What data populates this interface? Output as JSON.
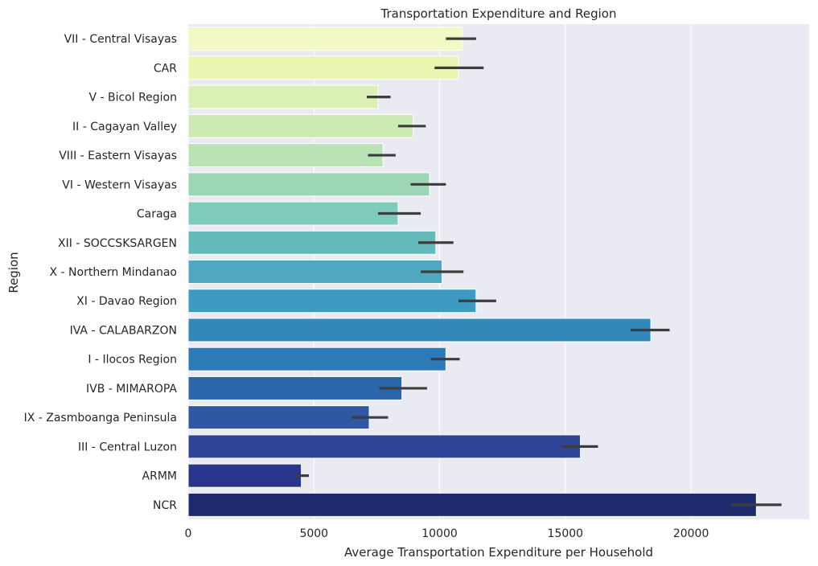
{
  "chart_data": {
    "type": "bar",
    "orientation": "horizontal",
    "title": "Transportation Expenditure and Region",
    "xlabel": "Average Transportation Expenditure per Household",
    "ylabel": "Region",
    "xlim": [
      0,
      24700
    ],
    "xticks": [
      0,
      5000,
      10000,
      15000,
      20000
    ],
    "grid": true,
    "palette": "YlGnBu",
    "categories": [
      "VII - Central Visayas",
      "CAR",
      "V - Bicol Region",
      "II - Cagayan Valley",
      "VIII - Eastern Visayas",
      "VI - Western Visayas",
      "Caraga",
      "XII - SOCCSKSARGEN",
      "X - Northern Mindanao",
      "XI - Davao Region",
      "IVA - CALABARZON",
      "I - Ilocos Region",
      "IVB - MIMAROPA",
      "IX - Zasmboanga Peninsula",
      "III - Central Luzon",
      "ARMM",
      "NCR"
    ],
    "values": [
      10900,
      10750,
      7550,
      8950,
      7750,
      9600,
      8350,
      9850,
      10100,
      11450,
      18400,
      10250,
      8500,
      7200,
      15600,
      4500,
      22600
    ],
    "ci_low": [
      10250,
      9800,
      7100,
      8350,
      7150,
      8850,
      7550,
      9150,
      9250,
      10750,
      17600,
      9650,
      7600,
      6500,
      14850,
      4250,
      21600
    ],
    "ci_high": [
      11450,
      11750,
      8050,
      9450,
      8250,
      10250,
      9250,
      10550,
      10950,
      12250,
      19150,
      10800,
      9500,
      7950,
      16300,
      4800,
      23600
    ],
    "colors": [
      "#f3f9c5",
      "#e9f6b1",
      "#dbf0b4",
      "#cbeab4",
      "#b9e3b5",
      "#9dd6b7",
      "#7ecbbb",
      "#64b9b9",
      "#4fa8bf",
      "#3d9bc1",
      "#3289b9",
      "#2a7bb7",
      "#2c66aa",
      "#2f57a2",
      "#2e4597",
      "#29358c",
      "#1e2b6c"
    ],
    "error_bar_color": "#3d3d3d",
    "background_color": "#eaeaf2"
  }
}
